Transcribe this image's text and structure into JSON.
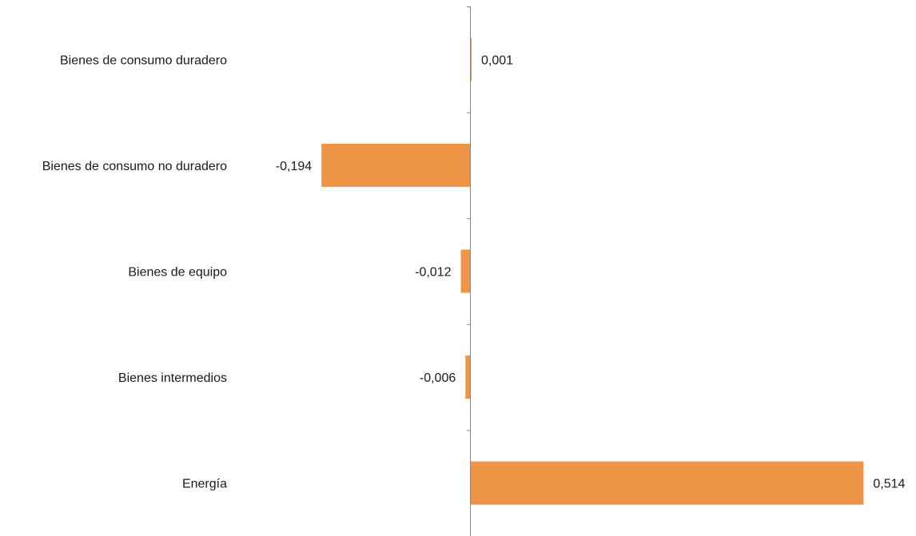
{
  "chart_data": {
    "type": "bar",
    "orientation": "horizontal",
    "categories": [
      "Bienes de consumo duradero",
      "Bienes de consumo no duradero",
      "Bienes de equipo",
      "Bienes intermedios",
      "Energía"
    ],
    "values": [
      0.001,
      -0.194,
      -0.012,
      -0.006,
      0.514
    ],
    "value_labels": [
      "0,001",
      "-0,194",
      "-0,012",
      "-0,006",
      "0,514"
    ],
    "title": "",
    "xlabel": "",
    "ylabel": "",
    "xlim": [
      -0.194,
      0.514
    ],
    "grid": false,
    "legend": "none",
    "bar_color": "#ED9446",
    "axis_color": "#888888"
  }
}
